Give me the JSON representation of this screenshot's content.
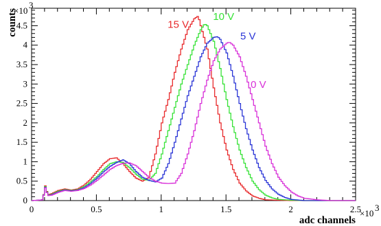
{
  "chart_data": {
    "type": "line",
    "xlabel": "adc channels",
    "ylabel": "counts",
    "x_multiplier_label": "×10",
    "x_multiplier_exp": "3",
    "y_multiplier_label": "×10",
    "y_multiplier_exp": "3",
    "xlim": [
      0,
      2.5
    ],
    "ylim": [
      0,
      4.95
    ],
    "x_ticks": [
      0,
      0.5,
      1,
      1.5,
      2,
      2.5
    ],
    "x_tick_labels": [
      "0",
      "0.5",
      "1",
      "1.5",
      "2",
      "2.5"
    ],
    "y_ticks": [
      0,
      0.5,
      1,
      1.5,
      2,
      2.5,
      3,
      3.5,
      4,
      4.5
    ],
    "y_tick_labels": [
      "0",
      "0.5",
      "1",
      "1.5",
      "2",
      "2.5",
      "3",
      "3.5",
      "4",
      "4.5"
    ],
    "grid": false,
    "series": [
      {
        "name": "15 V",
        "color": "#e8292b",
        "x": [
          0.0,
          0.08,
          0.1,
          0.12,
          0.15,
          0.2,
          0.25,
          0.3,
          0.35,
          0.4,
          0.45,
          0.5,
          0.55,
          0.6,
          0.65,
          0.7,
          0.75,
          0.8,
          0.85,
          0.9,
          0.95,
          1.0,
          1.05,
          1.1,
          1.15,
          1.2,
          1.25,
          1.28,
          1.3,
          1.35,
          1.4,
          1.45,
          1.5,
          1.55,
          1.6,
          1.65,
          1.7,
          1.75,
          1.8,
          1.9,
          2.0
        ],
        "y": [
          0,
          0.02,
          0.38,
          0.15,
          0.18,
          0.26,
          0.3,
          0.27,
          0.3,
          0.4,
          0.55,
          0.75,
          0.95,
          1.08,
          1.1,
          0.95,
          0.75,
          0.58,
          0.5,
          0.6,
          1.2,
          2.0,
          2.6,
          3.3,
          3.9,
          4.4,
          4.68,
          4.75,
          4.5,
          3.9,
          2.9,
          2.0,
          1.3,
          0.8,
          0.45,
          0.25,
          0.12,
          0.06,
          0.02,
          0.01,
          0
        ]
      },
      {
        "name": "10 V",
        "color": "#36e236",
        "x": [
          0.0,
          0.08,
          0.1,
          0.12,
          0.15,
          0.2,
          0.25,
          0.3,
          0.35,
          0.4,
          0.45,
          0.5,
          0.55,
          0.6,
          0.65,
          0.7,
          0.75,
          0.8,
          0.85,
          0.9,
          0.95,
          1.0,
          1.05,
          1.1,
          1.15,
          1.2,
          1.25,
          1.3,
          1.33,
          1.35,
          1.4,
          1.45,
          1.5,
          1.55,
          1.6,
          1.65,
          1.7,
          1.75,
          1.8,
          1.85,
          1.9,
          2.0,
          2.1
        ],
        "y": [
          0,
          0.02,
          0.36,
          0.14,
          0.16,
          0.24,
          0.28,
          0.26,
          0.28,
          0.36,
          0.48,
          0.62,
          0.8,
          0.95,
          1.0,
          0.98,
          0.85,
          0.68,
          0.55,
          0.52,
          0.7,
          1.2,
          1.8,
          2.4,
          3.0,
          3.5,
          4.0,
          4.4,
          4.55,
          4.5,
          4.1,
          3.4,
          2.6,
          1.9,
          1.3,
          0.85,
          0.5,
          0.28,
          0.14,
          0.07,
          0.03,
          0.01,
          0
        ]
      },
      {
        "name": "5 V",
        "color": "#2a35d6",
        "x": [
          0.0,
          0.08,
          0.1,
          0.12,
          0.15,
          0.2,
          0.25,
          0.3,
          0.35,
          0.4,
          0.45,
          0.5,
          0.55,
          0.6,
          0.65,
          0.7,
          0.75,
          0.8,
          0.85,
          0.9,
          0.95,
          1.0,
          1.05,
          1.1,
          1.15,
          1.2,
          1.25,
          1.3,
          1.35,
          1.4,
          1.43,
          1.45,
          1.5,
          1.55,
          1.6,
          1.65,
          1.7,
          1.75,
          1.8,
          1.85,
          1.9,
          1.95,
          2.0,
          2.1
        ],
        "y": [
          0,
          0.02,
          0.34,
          0.13,
          0.15,
          0.22,
          0.27,
          0.25,
          0.27,
          0.33,
          0.44,
          0.58,
          0.74,
          0.88,
          0.98,
          1.05,
          0.95,
          0.75,
          0.6,
          0.52,
          0.48,
          0.58,
          0.95,
          1.5,
          2.1,
          2.7,
          3.2,
          3.7,
          4.05,
          4.2,
          4.22,
          4.15,
          3.8,
          3.2,
          2.5,
          1.85,
          1.3,
          0.85,
          0.52,
          0.3,
          0.16,
          0.08,
          0.03,
          0
        ]
      },
      {
        "name": "0 V",
        "color": "#d82fd8",
        "x": [
          0.0,
          0.08,
          0.1,
          0.12,
          0.15,
          0.2,
          0.25,
          0.3,
          0.35,
          0.4,
          0.45,
          0.5,
          0.55,
          0.6,
          0.65,
          0.7,
          0.75,
          0.8,
          0.85,
          0.9,
          0.95,
          1.0,
          1.05,
          1.1,
          1.15,
          1.2,
          1.25,
          1.3,
          1.35,
          1.4,
          1.45,
          1.5,
          1.52,
          1.55,
          1.6,
          1.65,
          1.7,
          1.75,
          1.8,
          1.85,
          1.9,
          1.95,
          2.0,
          2.05,
          2.1,
          2.2,
          2.3
        ],
        "y": [
          0,
          0.02,
          0.33,
          0.13,
          0.14,
          0.21,
          0.26,
          0.24,
          0.26,
          0.31,
          0.4,
          0.52,
          0.66,
          0.8,
          0.9,
          0.96,
          0.97,
          0.9,
          0.75,
          0.6,
          0.5,
          0.45,
          0.44,
          0.45,
          0.7,
          1.2,
          1.8,
          2.5,
          3.1,
          3.6,
          3.9,
          4.05,
          4.08,
          4.0,
          3.7,
          3.2,
          2.6,
          2.0,
          1.4,
          0.95,
          0.6,
          0.38,
          0.22,
          0.12,
          0.06,
          0.02,
          0
        ]
      }
    ],
    "annotations": [
      {
        "series": "15 V",
        "text": "15 V",
        "x": 1.05,
        "y": 4.45
      },
      {
        "series": "10 V",
        "text": "10 V",
        "x": 1.4,
        "y": 4.65
      },
      {
        "series": "5 V",
        "text": "5 V",
        "x": 1.61,
        "y": 4.15
      },
      {
        "series": "0 V",
        "text": "0 V",
        "x": 1.69,
        "y": 2.9
      }
    ]
  }
}
